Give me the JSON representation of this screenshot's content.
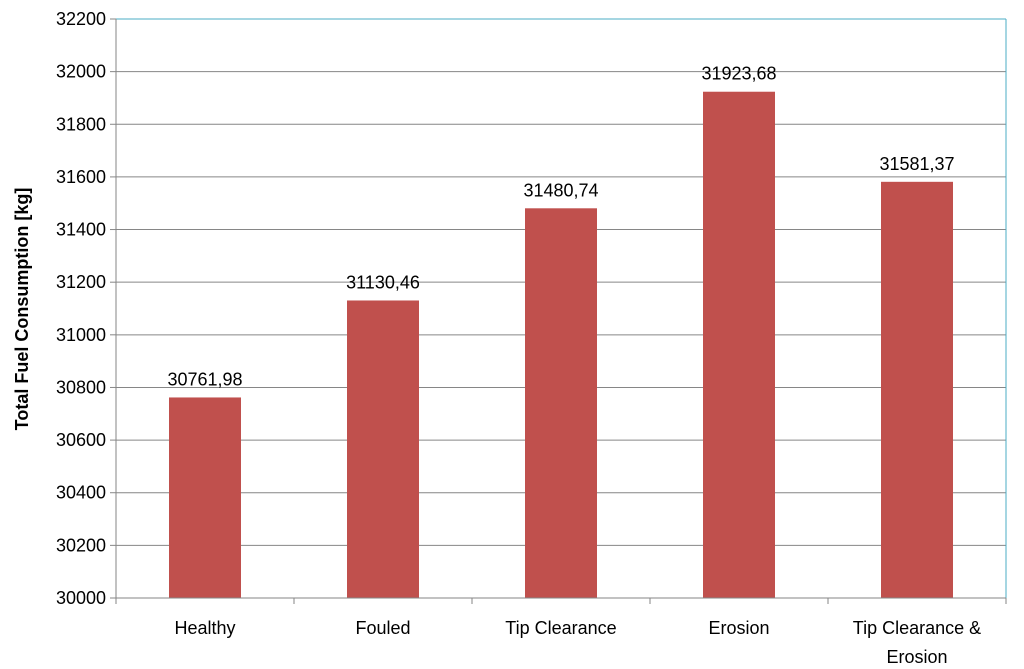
{
  "chart_data": {
    "type": "bar",
    "title": "",
    "xlabel": "",
    "ylabel": "Total Fuel Consumption [kg]",
    "categories": [
      "Healthy",
      "Fouled",
      "Tip Clearance",
      "Erosion",
      "Tip Clearance & Erosion"
    ],
    "category_lines": [
      [
        "Healthy"
      ],
      [
        "Fouled"
      ],
      [
        "Tip Clearance"
      ],
      [
        "Erosion"
      ],
      [
        "Tip Clearance &",
        "Erosion"
      ]
    ],
    "values": [
      30761.98,
      31130.46,
      31480.74,
      31923.68,
      31581.37
    ],
    "value_labels": [
      "30761,98",
      "31130,46",
      "31480,74",
      "31923,68",
      "31581,37"
    ],
    "ylim": [
      30000,
      32200
    ],
    "yticks": [
      30000,
      30200,
      30400,
      30600,
      30800,
      31000,
      31200,
      31400,
      31600,
      31800,
      32000,
      32200
    ],
    "grid": true,
    "legend": "none",
    "colors": {
      "bar": "#c0504d",
      "grid": "#868686",
      "plot_border": "#4bacc6",
      "axis": "#868686"
    }
  }
}
